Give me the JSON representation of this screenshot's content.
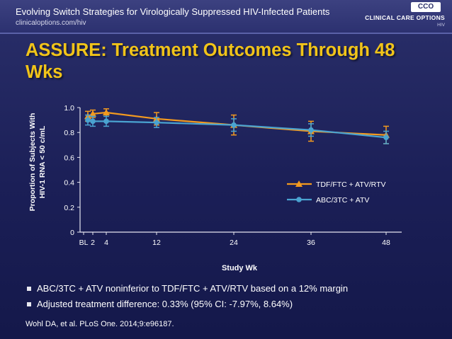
{
  "header": {
    "title": "Evolving Switch Strategies for Virologically Suppressed HIV-Infected Patients",
    "url": "clinicaloptions.com/hiv",
    "logo_mark": "CCO",
    "logo_text": "CLINICAL CARE OPTIONS",
    "logo_sub": "HIV"
  },
  "slide": {
    "title": "ASSURE: Treatment Outcomes Through 48 Wks"
  },
  "chart_data": {
    "type": "line",
    "title": "",
    "ylabel": "Proportion of Subjects With HIV-1 RNA < 50 c/mL",
    "xlabel": "Study Wk",
    "x_ticks": [
      "BL",
      "2",
      "4",
      "12",
      "24",
      "36",
      "48"
    ],
    "y_ticks": [
      "0",
      "0.2",
      "0.4",
      "0.6",
      "0.8",
      "1.0"
    ],
    "ylim": [
      0,
      1.0
    ],
    "legend_position": "right",
    "series": [
      {
        "name": "TDF/FTC + ATV/RTV",
        "color": "#f39a1f",
        "marker": "triangle",
        "points": [
          {
            "x": "1",
            "y": 0.93,
            "err": 0.04
          },
          {
            "x": "2",
            "y": 0.95,
            "err": 0.03
          },
          {
            "x": "4",
            "y": 0.96,
            "err": 0.03
          },
          {
            "x": "12",
            "y": 0.91,
            "err": 0.05
          },
          {
            "x": "24",
            "y": 0.86,
            "err": 0.08
          },
          {
            "x": "36",
            "y": 0.81,
            "err": 0.08
          },
          {
            "x": "48",
            "y": 0.78,
            "err": 0.07
          }
        ]
      },
      {
        "name": "ABC/3TC + ATV",
        "color": "#4aa3d1",
        "marker": "circle",
        "points": [
          {
            "x": "1",
            "y": 0.9,
            "err": 0.04
          },
          {
            "x": "2",
            "y": 0.89,
            "err": 0.04
          },
          {
            "x": "4",
            "y": 0.89,
            "err": 0.04
          },
          {
            "x": "12",
            "y": 0.88,
            "err": 0.04
          },
          {
            "x": "24",
            "y": 0.86,
            "err": 0.05
          },
          {
            "x": "36",
            "y": 0.82,
            "err": 0.05
          },
          {
            "x": "48",
            "y": 0.76,
            "err": 0.05
          }
        ]
      }
    ]
  },
  "bullets": [
    "ABC/3TC + ATV noninferior to TDF/FTC + ATV/RTV based on a 12% margin",
    "Adjusted treatment difference: 0.33% (95% CI: -7.97%, 8.64%)"
  ],
  "reference": "Wohl DA, et al. PLoS One. 2014;9:e96187."
}
